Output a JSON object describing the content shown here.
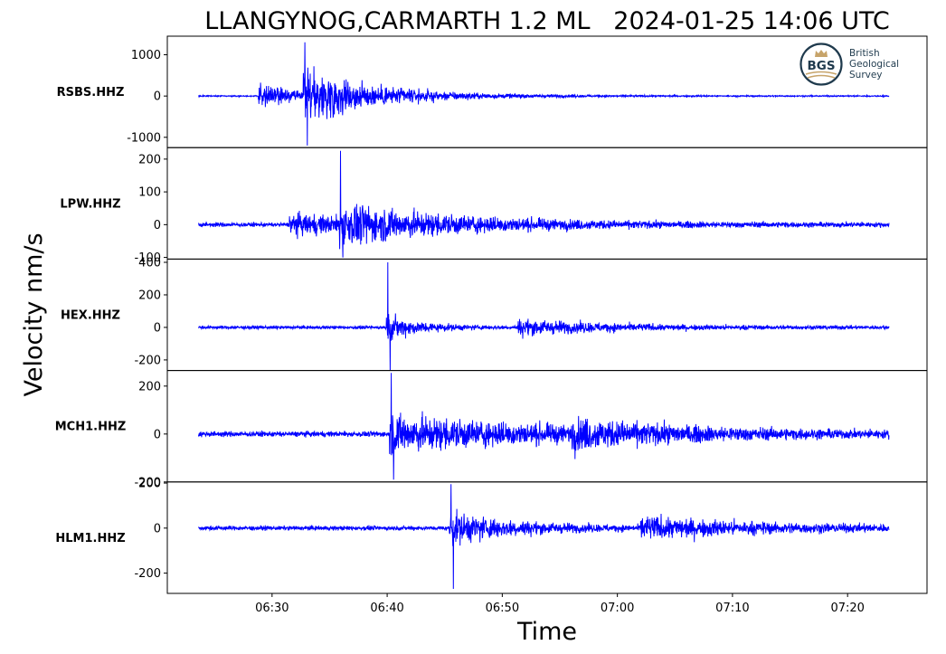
{
  "chart_data": {
    "type": "line",
    "title": "LLANGYNOG,CARMARTH 1.2 ML   2024-01-25 14:06 UTC",
    "xlabel": "Time",
    "ylabel": "Velocity nm/s",
    "x_ticks": [
      "06:30",
      "06:40",
      "06:50",
      "07:00",
      "07:10",
      "07:20"
    ],
    "x_tick_minutes": [
      30,
      40,
      50,
      60,
      70,
      80
    ],
    "x_range_minutes": [
      20.9,
      86.9
    ],
    "trace_span_minutes": [
      23.6,
      83.6
    ],
    "line_color": "#0000ff",
    "grid": false,
    "panels": [
      {
        "station": "RSBS.HHZ",
        "ylim": [
          -1250,
          1450
        ],
        "yticks": [
          1000,
          0,
          -1000
        ],
        "ytick_labels": [
          "1000",
          "0",
          "-1000"
        ],
        "noise": 18,
        "max": 1300,
        "min": -1200,
        "arrivals": [
          {
            "t": 28.8,
            "amp": 420,
            "tau": 3.0
          },
          {
            "t": 32.7,
            "amp": 780,
            "tau": 6.5
          }
        ]
      },
      {
        "station": "LPW.HHZ",
        "ylim": [
          -105,
          235
        ],
        "yticks": [
          200,
          100,
          0,
          -100
        ],
        "ytick_labels": [
          "200",
          "100",
          "0",
          "-100"
        ],
        "noise": 8,
        "max": 225,
        "min": -100,
        "arrivals": [
          {
            "t": 31.5,
            "amp": 35,
            "tau": 14
          },
          {
            "t": 35.8,
            "amp": 55,
            "tau": 9
          }
        ]
      },
      {
        "station": "HEX.HHZ",
        "ylim": [
          -265,
          420
        ],
        "yticks": [
          400,
          200,
          0,
          -200
        ],
        "ytick_labels": [
          "400",
          "200",
          "0",
          "-200"
        ],
        "noise": 12,
        "max": 400,
        "min": -270,
        "arrivals": [
          {
            "t": 39.9,
            "amp": 95,
            "tau": 3
          },
          {
            "t": 51.3,
            "amp": 55,
            "tau": 9
          }
        ]
      },
      {
        "station": "MCH1.HHZ",
        "ylim": [
          -200,
          265
        ],
        "yticks": [
          200,
          0,
          -200
        ],
        "ytick_labels": [
          "200",
          "0",
          "-200"
        ],
        "noise": 14,
        "max": 255,
        "min": -190,
        "arrivals": [
          {
            "t": 40.2,
            "amp": 95,
            "tau": 15
          },
          {
            "t": 56.0,
            "amp": 45,
            "tau": 10
          }
        ]
      },
      {
        "station": "HLM1.HHZ",
        "ylim": [
          -290,
          205
        ],
        "yticks": [
          200,
          0,
          -200
        ],
        "ytick_labels": [
          "200",
          "0",
          "-200"
        ],
        "noise": 12,
        "max": 195,
        "min": -270,
        "arrivals": [
          {
            "t": 45.4,
            "amp": 85,
            "tau": 6
          },
          {
            "t": 62.0,
            "amp": 55,
            "tau": 12
          }
        ]
      }
    ]
  },
  "logo": {
    "emblem": "BGS",
    "name_lines": [
      "British",
      "Geological",
      "Survey"
    ],
    "colors": {
      "ring": "#1f3a4d",
      "crown": "#c7a46a",
      "text": "#1f3a4d"
    }
  }
}
